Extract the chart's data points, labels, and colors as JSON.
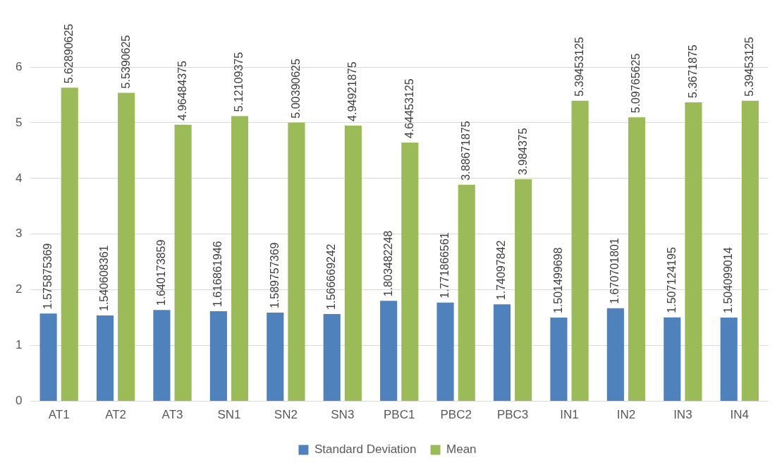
{
  "chart_data": {
    "type": "bar",
    "categories": [
      "AT1",
      "AT2",
      "AT3",
      "SN1",
      "SN2",
      "SN3",
      "PBC1",
      "PBC2",
      "PBC3",
      "IN1",
      "IN2",
      "IN3",
      "IN4"
    ],
    "series": [
      {
        "name": "Standard Deviation",
        "color": "#4f81bd",
        "values": [
          1.575875369,
          1.540608361,
          1.640173859,
          1.616861946,
          1.589757369,
          1.566669242,
          1.803482248,
          1.771866561,
          1.74097842,
          1.501499698,
          1.670701801,
          1.507124195,
          1.504099014
        ]
      },
      {
        "name": "Mean",
        "color": "#9bbb59",
        "values": [
          5.62890625,
          5.5390625,
          4.96484375,
          5.12109375,
          5.00390625,
          4.94921875,
          4.64453125,
          3.88671875,
          3.984375,
          5.39453125,
          5.09765625,
          5.3671875,
          5.39453125
        ]
      }
    ],
    "ylim": [
      0,
      6
    ],
    "yticks": [
      0,
      1,
      2,
      3,
      4,
      5,
      6
    ],
    "grid": "y",
    "legend": "bottom",
    "data_labels": true
  }
}
